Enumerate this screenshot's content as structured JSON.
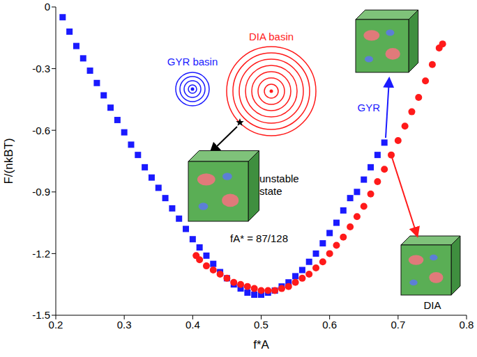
{
  "chart_data": {
    "type": "scatter",
    "x_label": "f*A",
    "y_label": "F/(nkBT)",
    "xlim": [
      0.2,
      0.8
    ],
    "xticks": [
      0.2,
      0.3,
      0.4,
      0.5,
      0.6,
      0.7,
      0.8
    ],
    "ylim": [
      -1.5,
      0
    ],
    "yticks": [
      -1.5,
      -1.2,
      -0.9,
      -0.6,
      -0.3,
      0
    ],
    "grid": false,
    "annotations": [
      "GYR basin",
      "DIA basin",
      "unstable state",
      "fA* = 87/128"
    ],
    "series": [
      {
        "name": "GYR",
        "color": "#1a1aff",
        "marker": "square",
        "x": [
          0.21,
          0.22,
          0.23,
          0.24,
          0.25,
          0.26,
          0.27,
          0.28,
          0.29,
          0.3,
          0.31,
          0.32,
          0.33,
          0.34,
          0.35,
          0.36,
          0.37,
          0.38,
          0.39,
          0.4,
          0.41,
          0.42,
          0.43,
          0.44,
          0.45,
          0.46,
          0.47,
          0.48,
          0.49,
          0.5,
          0.51,
          0.52,
          0.53,
          0.54,
          0.55,
          0.56,
          0.57,
          0.58,
          0.59,
          0.6,
          0.61,
          0.62,
          0.63,
          0.64,
          0.65,
          0.66,
          0.67,
          0.68
        ],
        "values": [
          -0.05,
          -0.12,
          -0.19,
          -0.25,
          -0.31,
          -0.37,
          -0.43,
          -0.49,
          -0.55,
          -0.61,
          -0.67,
          -0.72,
          -0.78,
          -0.83,
          -0.88,
          -0.93,
          -0.98,
          -1.03,
          -1.08,
          -1.13,
          -1.17,
          -1.21,
          -1.25,
          -1.29,
          -1.32,
          -1.35,
          -1.37,
          -1.39,
          -1.4,
          -1.4,
          -1.39,
          -1.38,
          -1.36,
          -1.34,
          -1.31,
          -1.28,
          -1.24,
          -1.2,
          -1.15,
          -1.1,
          -1.05,
          -0.99,
          -0.93,
          -0.9,
          -0.84,
          -0.78,
          -0.72,
          -0.66
        ]
      },
      {
        "name": "DIA",
        "color": "#ff1a1a",
        "marker": "circle",
        "x": [
          0.405,
          0.41,
          0.42,
          0.43,
          0.44,
          0.45,
          0.46,
          0.47,
          0.48,
          0.49,
          0.5,
          0.51,
          0.52,
          0.53,
          0.54,
          0.55,
          0.56,
          0.57,
          0.58,
          0.59,
          0.6,
          0.61,
          0.62,
          0.63,
          0.64,
          0.65,
          0.66,
          0.67,
          0.68,
          0.69,
          0.7,
          0.71,
          0.72,
          0.73,
          0.74,
          0.75,
          0.76,
          0.765
        ],
        "values": [
          -1.21,
          -1.23,
          -1.26,
          -1.28,
          -1.3,
          -1.32,
          -1.34,
          -1.35,
          -1.36,
          -1.37,
          -1.38,
          -1.38,
          -1.38,
          -1.37,
          -1.36,
          -1.34,
          -1.32,
          -1.3,
          -1.27,
          -1.24,
          -1.2,
          -1.16,
          -1.12,
          -1.07,
          -1.02,
          -0.97,
          -0.91,
          -0.85,
          -0.79,
          -0.72,
          -0.65,
          -0.58,
          -0.51,
          -0.44,
          -0.36,
          -0.28,
          -0.2,
          -0.18
        ]
      }
    ]
  }
}
